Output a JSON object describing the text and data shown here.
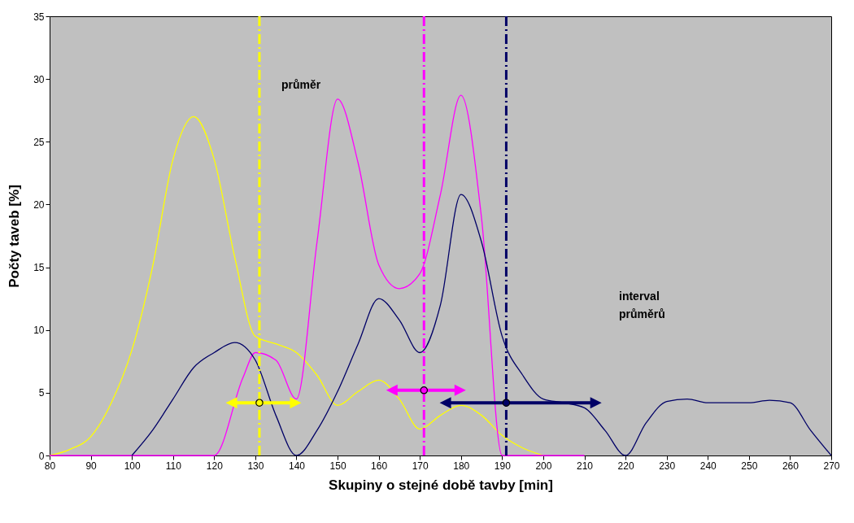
{
  "chart_data": {
    "type": "line",
    "xlabel": "Skupiny o stejné době tavby [min]",
    "ylabel": "Počty taveb [%]",
    "xlim": [
      80,
      270
    ],
    "xticks": [
      80,
      90,
      100,
      110,
      120,
      130,
      140,
      150,
      160,
      170,
      180,
      190,
      200,
      210,
      220,
      230,
      240,
      250,
      260,
      270
    ],
    "ylim": [
      0,
      35
    ],
    "yticks": [
      0,
      5,
      10,
      15,
      20,
      25,
      30,
      35
    ],
    "grid": false,
    "legend": false,
    "series": [
      {
        "color": "#ffff00",
        "x": [
          80,
          85,
          90,
          95,
          100,
          105,
          110,
          115,
          120,
          125,
          130,
          135,
          140,
          145,
          150,
          155,
          160,
          165,
          170,
          175,
          180,
          185,
          190,
          195,
          200
        ],
        "values": [
          0,
          0.5,
          1.5,
          4.2,
          8.4,
          15,
          23.6,
          27,
          23.6,
          15.8,
          9.5,
          8.9,
          8.2,
          6.4,
          4,
          5.1,
          6,
          4.5,
          2.1,
          3.2,
          4,
          3.2,
          1.6,
          0.6,
          0
        ]
      },
      {
        "color": "#ff00ff",
        "x": [
          80,
          90,
          100,
          110,
          120,
          127,
          130,
          135,
          140,
          145,
          150,
          155,
          160,
          165,
          170,
          175,
          180,
          185,
          190,
          195,
          200,
          210
        ],
        "values": [
          0,
          0,
          0,
          0,
          0,
          6.2,
          8.2,
          7.6,
          4.5,
          17,
          28.4,
          23.3,
          15.2,
          13.3,
          14.5,
          20.8,
          28.7,
          18.9,
          0,
          0,
          0,
          0
        ]
      },
      {
        "color": "#000066",
        "x": [
          100,
          105,
          110,
          115,
          120,
          125,
          130,
          135,
          140,
          145,
          150,
          155,
          160,
          165,
          170,
          175,
          180,
          185,
          190,
          195,
          200,
          205,
          210,
          215,
          220,
          225,
          230,
          235,
          240,
          245,
          250,
          255,
          260,
          265,
          270
        ],
        "values": [
          0,
          2,
          4.5,
          7,
          8.2,
          9,
          7.6,
          3.2,
          0,
          2,
          5.1,
          8.9,
          12.5,
          10.8,
          8.2,
          12,
          20.8,
          17,
          9.5,
          6.4,
          4.5,
          4.2,
          3.8,
          2,
          0,
          2.6,
          4.3,
          4.5,
          4.2,
          4.2,
          4.2,
          4.4,
          4.2,
          2,
          0
        ]
      },
      {
        "type": "scatter",
        "color": "#ffff00",
        "x": [
          131
        ],
        "values": [
          4.2
        ],
        "xerrors": [
          [
            124,
            140
          ]
        ]
      },
      {
        "type": "scatter",
        "color": "#ff00ff",
        "x": [
          171
        ],
        "values": [
          5.2
        ],
        "xerrors": [
          [
            163,
            180
          ]
        ]
      },
      {
        "type": "scatter",
        "color": "#000066",
        "x": [
          191
        ],
        "values": [
          4.2
        ],
        "xerrors": [
          [
            176,
            213
          ]
        ]
      }
    ],
    "ref_lines": [
      {
        "axis": "x",
        "value": 131,
        "color": "#ffff00",
        "line_style": "dashed"
      },
      {
        "axis": "x",
        "value": 171,
        "color": "#ff00ff",
        "line_style": "dashed"
      },
      {
        "axis": "x",
        "value": 191,
        "color": "#000066",
        "line_style": "dashed"
      }
    ],
    "annotations": [
      "průměr",
      "interval průměrů"
    ]
  }
}
